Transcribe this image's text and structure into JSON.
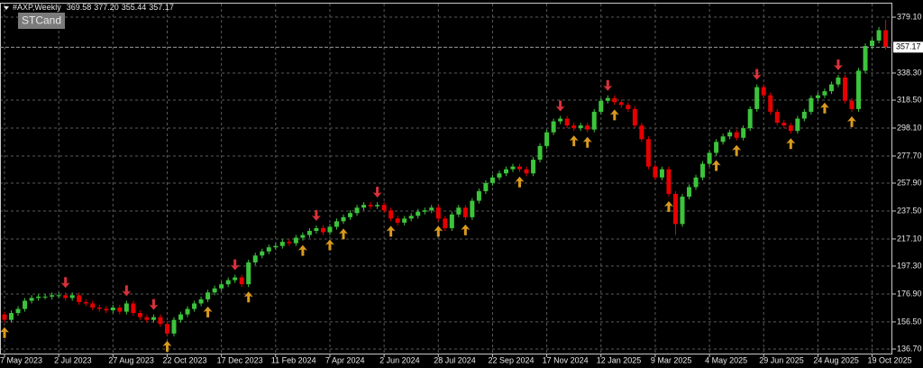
{
  "chart_data": {
    "type": "candlestick",
    "title": "#AXP,Weekly",
    "ohlc_readout": [
      {
        "value": 369.58,
        "label": "369.58"
      },
      {
        "value": 377.2,
        "label": "377.20"
      },
      {
        "value": 355.44,
        "label": "355.44"
      },
      {
        "value": 357.17,
        "label": "357.17"
      }
    ],
    "indicator": "STCand",
    "categories": [
      "7 May 2023",
      null,
      null,
      null,
      null,
      null,
      null,
      null,
      "2 Jul 2023",
      null,
      null,
      null,
      null,
      null,
      null,
      null,
      "27 Aug 2023",
      null,
      null,
      null,
      null,
      null,
      null,
      null,
      "22 Oct 2023",
      null,
      null,
      null,
      null,
      null,
      null,
      null,
      "17 Dec 2023",
      null,
      null,
      null,
      null,
      null,
      null,
      null,
      "11 Feb 2024",
      null,
      null,
      null,
      null,
      null,
      null,
      null,
      "7 Apr 2024",
      null,
      null,
      null,
      null,
      null,
      null,
      null,
      "2 Jun 2024",
      null,
      null,
      null,
      null,
      null,
      null,
      null,
      "28 Jul 2024",
      null,
      null,
      null,
      null,
      null,
      null,
      null,
      "22 Sep 2024",
      null,
      null,
      null,
      null,
      null,
      null,
      null,
      "17 Nov 2024",
      null,
      null,
      null,
      null,
      null,
      null,
      null,
      "12 Jan 2025",
      null,
      null,
      null,
      null,
      null,
      null,
      null,
      "9 Mar 2025",
      null,
      null,
      null,
      null,
      null,
      null,
      null,
      "4 May 2025",
      null,
      null,
      null,
      null,
      null,
      null,
      null,
      "29 Jun 2025",
      null,
      null,
      null,
      null,
      null,
      null,
      null,
      "24 Aug 2025",
      null,
      null,
      null,
      null,
      null,
      null,
      null,
      "19 Oct 2025",
      null,
      null
    ],
    "open": [
      162,
      158,
      163,
      166,
      172,
      174,
      175,
      175,
      176,
      176,
      174,
      176,
      171,
      170,
      167,
      166,
      165,
      167,
      164,
      170,
      163,
      160,
      158,
      160,
      155,
      148,
      158,
      162,
      166,
      170,
      173,
      178,
      181,
      184,
      187,
      189,
      184,
      200,
      205,
      208,
      211,
      212,
      215,
      214,
      218,
      220,
      223,
      225,
      222,
      226,
      230,
      233,
      236,
      240,
      242,
      241,
      242,
      238,
      232,
      229,
      232,
      234,
      237,
      238,
      240,
      232,
      225,
      235,
      240,
      233,
      245,
      252,
      258,
      262,
      265,
      268,
      270,
      268,
      265,
      275,
      285,
      295,
      303,
      305,
      300,
      298,
      300,
      297,
      310,
      318,
      320,
      317,
      315,
      312,
      300,
      290,
      270,
      262,
      268,
      250,
      228,
      248,
      255,
      262,
      272,
      280,
      288,
      292,
      295,
      291,
      298,
      312,
      328,
      322,
      310,
      302,
      300,
      296,
      305,
      310,
      320,
      322,
      325,
      330,
      335,
      318,
      312,
      340,
      358,
      362,
      369.58
    ],
    "high": [
      164,
      165,
      168,
      174,
      176,
      177,
      177,
      178,
      178,
      178,
      178,
      178,
      173,
      172,
      169,
      168,
      169,
      169,
      172,
      172,
      165,
      162,
      162,
      162,
      157,
      160,
      164,
      168,
      172,
      175,
      180,
      183,
      186,
      189,
      191,
      191,
      202,
      207,
      210,
      213,
      214,
      217,
      217,
      220,
      222,
      225,
      227,
      227,
      228,
      232,
      235,
      238,
      242,
      244,
      244,
      244,
      244,
      240,
      234,
      234,
      236,
      239,
      240,
      242,
      242,
      234,
      237,
      242,
      242,
      247,
      254,
      260,
      264,
      267,
      270,
      272,
      272,
      270,
      277,
      287,
      297,
      305,
      307,
      307,
      302,
      302,
      302,
      312,
      320,
      322,
      322,
      319,
      317,
      314,
      302,
      292,
      272,
      270,
      270,
      252,
      250,
      257,
      264,
      274,
      282,
      290,
      294,
      297,
      297,
      300,
      314,
      330,
      330,
      324,
      312,
      304,
      302,
      307,
      312,
      322,
      324,
      327,
      332,
      337,
      337,
      320,
      342,
      360,
      364,
      372,
      377.2
    ],
    "low": [
      156,
      156,
      161,
      164,
      170,
      172,
      173,
      173,
      174,
      172,
      172,
      169,
      168,
      165,
      164,
      163,
      163,
      162,
      162,
      161,
      158,
      156,
      156,
      153,
      146,
      146,
      156,
      160,
      164,
      168,
      171,
      176,
      179,
      182,
      185,
      182,
      182,
      198,
      203,
      206,
      209,
      210,
      212,
      212,
      216,
      218,
      221,
      220,
      220,
      224,
      228,
      231,
      234,
      238,
      239,
      239,
      236,
      230,
      227,
      227,
      230,
      232,
      235,
      236,
      230,
      223,
      223,
      233,
      231,
      231,
      243,
      250,
      256,
      260,
      263,
      266,
      266,
      263,
      263,
      273,
      283,
      293,
      301,
      298,
      296,
      296,
      295,
      295,
      308,
      316,
      315,
      313,
      310,
      298,
      288,
      268,
      260,
      260,
      248,
      220,
      226,
      246,
      253,
      260,
      270,
      278,
      286,
      290,
      289,
      289,
      296,
      310,
      320,
      308,
      300,
      298,
      294,
      294,
      303,
      308,
      318,
      320,
      323,
      328,
      316,
      310,
      310,
      338,
      356,
      360,
      355.44
    ],
    "close": [
      158,
      163,
      166,
      172,
      174,
      175,
      175,
      176,
      176,
      174,
      176,
      171,
      170,
      167,
      166,
      165,
      167,
      164,
      170,
      163,
      160,
      158,
      160,
      155,
      148,
      158,
      162,
      166,
      170,
      173,
      178,
      181,
      184,
      187,
      189,
      184,
      200,
      205,
      208,
      211,
      212,
      215,
      214,
      218,
      220,
      223,
      225,
      222,
      226,
      230,
      233,
      236,
      240,
      242,
      241,
      242,
      238,
      232,
      229,
      232,
      234,
      237,
      238,
      240,
      232,
      225,
      235,
      240,
      233,
      245,
      252,
      258,
      262,
      265,
      268,
      270,
      268,
      265,
      275,
      285,
      295,
      303,
      305,
      300,
      298,
      300,
      297,
      310,
      318,
      320,
      317,
      315,
      312,
      300,
      290,
      270,
      262,
      268,
      250,
      228,
      248,
      255,
      262,
      272,
      280,
      288,
      292,
      295,
      291,
      298,
      312,
      328,
      322,
      310,
      302,
      300,
      296,
      305,
      310,
      320,
      322,
      325,
      330,
      335,
      318,
      312,
      340,
      358,
      362,
      369.58,
      357.17
    ],
    "up_color": "#3cc43c",
    "down_color": "#e60000",
    "buy_signals": [
      0,
      24,
      30,
      36,
      44,
      48,
      50,
      57,
      64,
      68,
      76,
      84,
      86,
      90,
      98,
      105,
      108,
      116,
      121,
      125
    ],
    "sell_signals": [
      9,
      18,
      22,
      34,
      46,
      55,
      82,
      89,
      111,
      123
    ],
    "buy_color": "#d99a1e",
    "sell_color": "#d8323a",
    "last_price": {
      "value": 357.17,
      "label": "357.17"
    },
    "ylim": [
      133.4,
      389.0
    ],
    "yticks": [
      {
        "value": 379.1,
        "label": "379.10"
      },
      {
        "value": 338.3,
        "label": "338.30"
      },
      {
        "value": 318.5,
        "label": "318.50"
      },
      {
        "value": 298.1,
        "label": "298.10"
      },
      {
        "value": 277.7,
        "label": "277.70"
      },
      {
        "value": 257.9,
        "label": "257.90"
      },
      {
        "value": 237.5,
        "label": "237.50"
      },
      {
        "value": 217.1,
        "label": "217.10"
      },
      {
        "value": 197.3,
        "label": "197.30"
      },
      {
        "value": 176.9,
        "label": "176.90"
      },
      {
        "value": 156.5,
        "label": "156.50"
      },
      {
        "value": 136.7,
        "label": "136.70"
      }
    ],
    "grid": true
  }
}
